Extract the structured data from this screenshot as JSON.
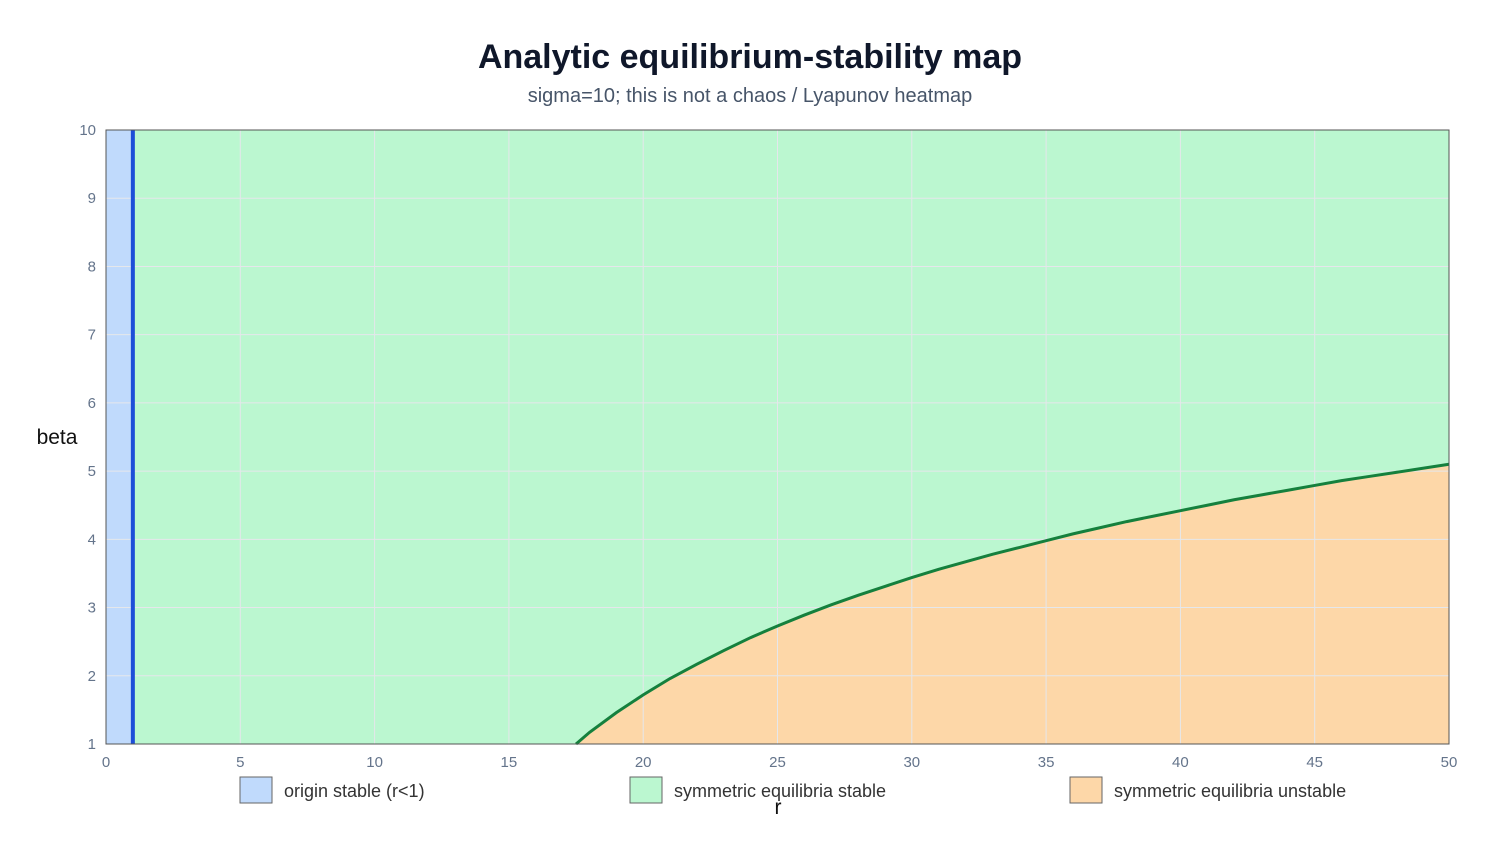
{
  "chart_data": {
    "type": "area",
    "title": "Analytic equilibrium-stability map",
    "subtitle": "sigma=10; this is not a chaos / Lyapunov heatmap",
    "xlabel": "r",
    "ylabel": "beta",
    "xlim": [
      0,
      50
    ],
    "ylim": [
      1,
      10
    ],
    "xticks": [
      "0",
      "5",
      "10",
      "15",
      "20",
      "25",
      "30",
      "35",
      "40",
      "45",
      "50"
    ],
    "yticks": [
      "1",
      "2",
      "3",
      "4",
      "5",
      "6",
      "7",
      "8",
      "9",
      "10"
    ],
    "grid": true,
    "legend_position": "bottom",
    "colors": {
      "origin_region": "#c0dafc",
      "stable_region": "#bbf7d0",
      "unstable_region": "#fdd7a8",
      "origin_boundary": "#1d4ed8",
      "hopf_boundary": "#15803d",
      "grid": "#e5e7eb"
    },
    "regions": [
      {
        "name": "origin stable (r<1)",
        "color": "#c0dafc"
      },
      {
        "name": "symmetric equilibria stable",
        "color": "#bbf7d0"
      },
      {
        "name": "symmetric equilibria unstable",
        "color": "#fdd7a8"
      }
    ],
    "origin_boundary_r": 1,
    "hopf_boundary": {
      "sigma": 10,
      "r": [
        17.5,
        18,
        19,
        20,
        21,
        22,
        23,
        24,
        25,
        26,
        27,
        28,
        29,
        30,
        31,
        32,
        33,
        34,
        35,
        36,
        37,
        38,
        39,
        40,
        41,
        42,
        43,
        44,
        45,
        46,
        47,
        48,
        49,
        50
      ],
      "beta": [
        1.0,
        1.17,
        1.46,
        1.72,
        1.96,
        2.17,
        2.37,
        2.56,
        2.73,
        2.89,
        3.04,
        3.18,
        3.31,
        3.44,
        3.56,
        3.67,
        3.78,
        3.88,
        3.98,
        4.08,
        4.17,
        4.26,
        4.34,
        4.42,
        4.5,
        4.58,
        4.65,
        4.72,
        4.79,
        4.86,
        4.92,
        4.98,
        5.04,
        5.1
      ]
    }
  }
}
